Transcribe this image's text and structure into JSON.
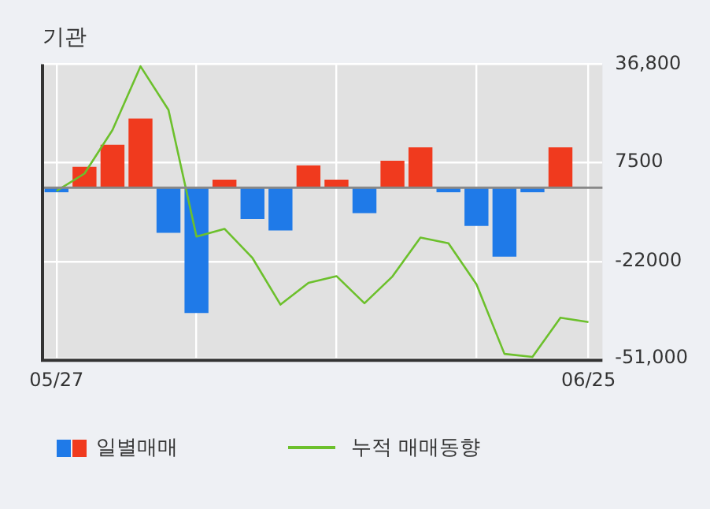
{
  "chart_data": {
    "type": "bar",
    "title": "기관",
    "categories": [
      "05/27",
      null,
      null,
      null,
      null,
      null,
      null,
      null,
      null,
      null,
      null,
      null,
      null,
      null,
      null,
      null,
      null,
      null,
      null,
      "06/25"
    ],
    "series": [
      {
        "name": "일별매매",
        "colors": [
          "#1f7ae8",
          "#f03a1e",
          "#f03a1e",
          "#f03a1e",
          "#1f7ae8",
          "#1f7ae8",
          "#f03a1e",
          "#1f7ae8",
          "#1f7ae8",
          "#f03a1e",
          "#f03a1e",
          "#1f7ae8",
          "#f03a1e",
          "#f03a1e",
          "#1f7ae8",
          "#1f7ae8",
          "#1f7ae8",
          "#1f7ae8",
          "#f03a1e",
          "#f03a1e"
        ],
        "values": [
          -1400,
          6200,
          12800,
          20600,
          -13500,
          -37400,
          2400,
          -9400,
          -12800,
          6600,
          2400,
          -7600,
          8000,
          12000,
          -1400,
          -11400,
          -20600,
          -1400,
          12000,
          null
        ]
      },
      {
        "name": "누적 매매동향",
        "type": "line",
        "color": "#6cc02c",
        "values": [
          -1000,
          4200,
          17200,
          36200,
          23200,
          -14600,
          -12300,
          -21000,
          -34900,
          -28400,
          -26400,
          -34500,
          -26500,
          -14900,
          -16600,
          -28800,
          -49600,
          -50500,
          -38800,
          -40100
        ]
      }
    ],
    "ylim": [
      -51500,
      36800
    ],
    "yticks": [
      {
        "value": 36800,
        "label": "36,800"
      },
      7500,
      -22000,
      {
        "value": -51000,
        "label": "-51,000"
      }
    ],
    "grid": true,
    "legend": "bottom",
    "marker": "none"
  }
}
